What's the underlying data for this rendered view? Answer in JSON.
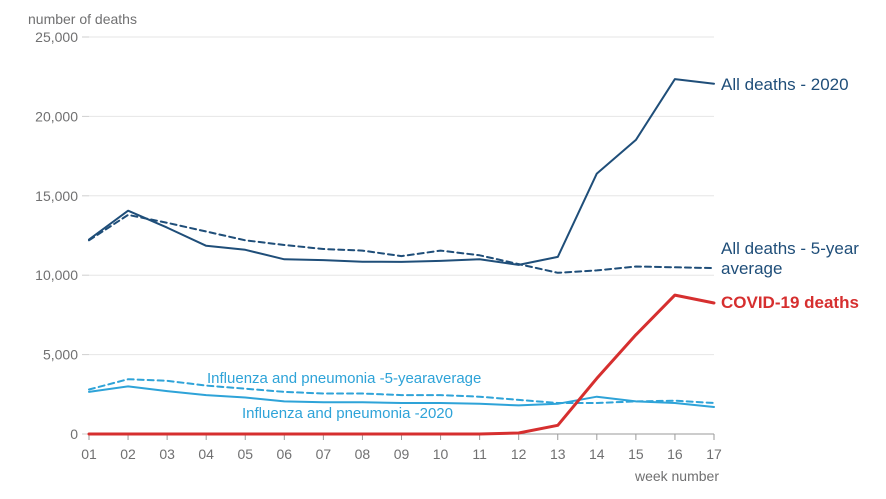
{
  "chart_data": {
    "type": "line",
    "ylabel": "number of deaths",
    "xlabel": "week number",
    "ylim": [
      0,
      25000
    ],
    "y_ticks": [
      "0",
      "5,000",
      "10,000",
      "15,000",
      "20,000",
      "25,000"
    ],
    "y_tick_values": [
      0,
      5000,
      10000,
      15000,
      20000,
      25000
    ],
    "categories": [
      "01",
      "02",
      "03",
      "04",
      "05",
      "06",
      "07",
      "08",
      "09",
      "10",
      "11",
      "12",
      "13",
      "14",
      "15",
      "16",
      "17"
    ],
    "grid": "horizontal",
    "colors": {
      "dark_blue": "#1f4e79",
      "light_blue": "#2ea3d8",
      "red": "#d62f2f",
      "tick_text": "#707071",
      "grid": "#e6e6e6",
      "axis": "#9a9a9a"
    },
    "series": [
      {
        "name": "All deaths - 2020",
        "label_lines": [
          "All deaths - 2020"
        ],
        "color_key": "dark_blue",
        "dashed": false,
        "values": [
          12250,
          14060,
          13000,
          11850,
          11600,
          11000,
          10950,
          10850,
          10840,
          10900,
          11000,
          10650,
          11150,
          16400,
          18520,
          22350,
          22050
        ]
      },
      {
        "name": "All deaths - 5-year average",
        "label_lines": [
          "All deaths - 5-year",
          "average"
        ],
        "color_key": "dark_blue",
        "dashed": true,
        "values": [
          12200,
          13800,
          13300,
          12750,
          12200,
          11900,
          11650,
          11550,
          11200,
          11550,
          11250,
          10700,
          10150,
          10300,
          10550,
          10500,
          10450
        ]
      },
      {
        "name": "COVID-19 deaths",
        "label_lines": [
          "COVID-19 deaths"
        ],
        "color_key": "red",
        "dashed": false,
        "bold": true,
        "values": [
          0,
          0,
          0,
          0,
          0,
          0,
          0,
          0,
          0,
          0,
          0,
          60,
          550,
          3500,
          6250,
          8750,
          8250
        ]
      },
      {
        "name": "Influenza and pneumonia -5-yearaverage",
        "label_lines": [
          "Influenza and pneumonia -5-yearaverage"
        ],
        "color_key": "light_blue",
        "dashed": true,
        "values": [
          2800,
          3450,
          3350,
          3050,
          2850,
          2650,
          2550,
          2550,
          2450,
          2450,
          2350,
          2150,
          1950,
          1950,
          2050,
          2100,
          1950
        ]
      },
      {
        "name": "Influenza and pneumonia -2020",
        "label_lines": [
          "Influenza and pneumonia -2020"
        ],
        "color_key": "light_blue",
        "dashed": false,
        "values": [
          2650,
          3000,
          2700,
          2450,
          2300,
          2050,
          2000,
          2000,
          1950,
          1950,
          1900,
          1800,
          1900,
          2350,
          2050,
          1950,
          1700
        ]
      }
    ]
  }
}
